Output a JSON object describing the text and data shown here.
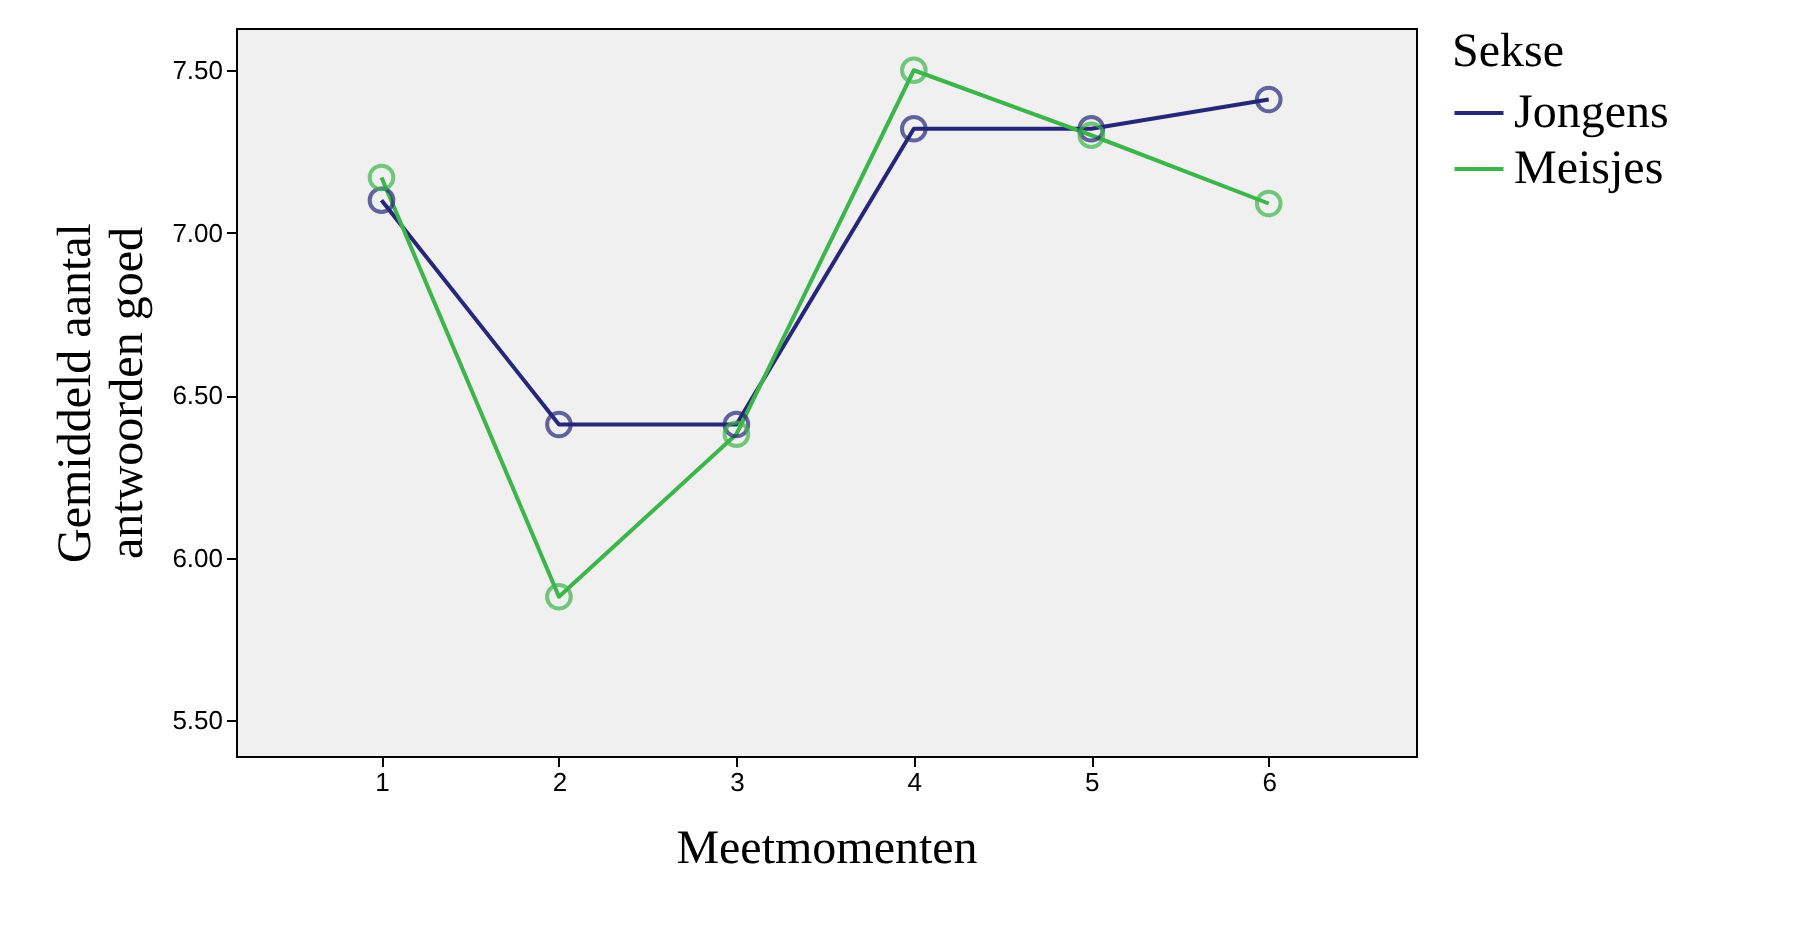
{
  "chart_data": {
    "type": "line",
    "xlabel": "Meetmomenten",
    "ylabel": "Gemiddeld aantal\nantwoorden goed",
    "legend_title": "Sekse",
    "x": [
      1,
      2,
      3,
      4,
      5,
      6
    ],
    "series": [
      {
        "name": "Jongens",
        "color": "#27277a",
        "values": [
          7.1,
          6.41,
          6.41,
          7.32,
          7.32,
          7.41
        ]
      },
      {
        "name": "Meisjes",
        "color": "#3cb54a",
        "values": [
          7.17,
          5.88,
          6.38,
          7.5,
          7.3,
          7.09
        ]
      }
    ],
    "xlim": [
      0.18,
      6.83
    ],
    "xticks": [
      1,
      2,
      3,
      4,
      5,
      6
    ],
    "ylim": [
      5.39,
      7.63
    ],
    "yticks": [
      {
        "value": 5.5,
        "label": "5.50"
      },
      {
        "value": 6.0,
        "label": "6.00"
      },
      {
        "value": 6.5,
        "label": "6.50"
      },
      {
        "value": 7.0,
        "label": "7.00"
      },
      {
        "value": 7.5,
        "label": "7.50"
      }
    ],
    "grid": false,
    "legend": "top right",
    "marker": "circle",
    "line_style": "solid"
  }
}
